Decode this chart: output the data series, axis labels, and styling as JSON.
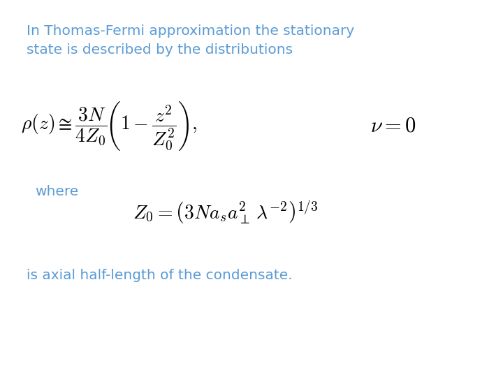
{
  "background_color": "#ffffff",
  "text_color_blue": "#5b9bd5",
  "text_color_black": "#000000",
  "intro_text_line1": "In Thomas-Fermi approximation the stationary",
  "intro_text_line2": "state is described by the distributions",
  "where_text": "where",
  "bottom_text": "is axial half-length of the condensate.",
  "fig_width": 7.2,
  "fig_height": 5.4,
  "dpi": 100
}
